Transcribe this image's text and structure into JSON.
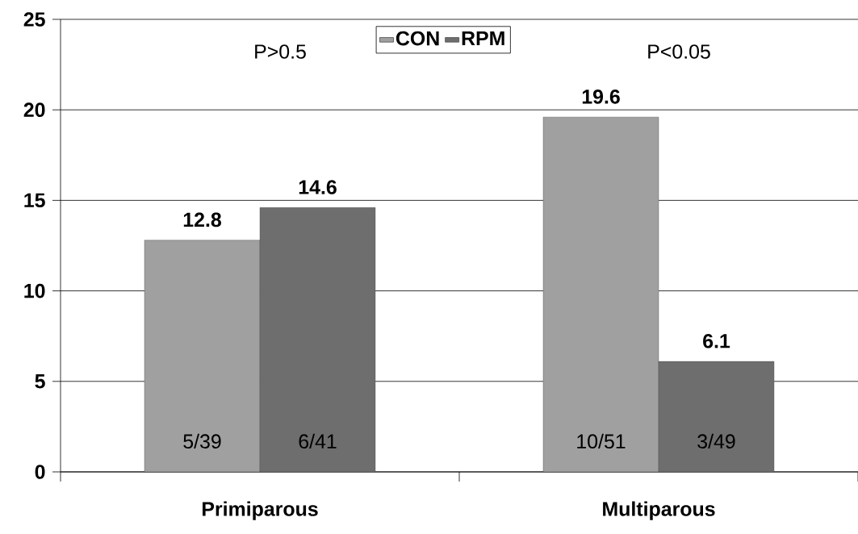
{
  "chart_data": {
    "type": "bar",
    "categories": [
      "Primiparous",
      "Multiparous"
    ],
    "series": [
      {
        "name": "CON",
        "color": "#a0a0a0",
        "values": [
          12.8,
          19.6
        ]
      },
      {
        "name": "RPM",
        "color": "#6e6e6e",
        "values": [
          14.6,
          6.1
        ]
      }
    ],
    "ylim": [
      0,
      25
    ],
    "yticks": [
      0,
      5,
      10,
      15,
      20,
      25
    ],
    "grid": "y",
    "legend": "top",
    "data_labels": true,
    "annotations": [
      "P>0.5",
      "P<0.05",
      {
        "text": "5/39",
        "x": "Primiparous",
        "y": 1.7
      },
      {
        "text": "6/41",
        "x": "Primiparous",
        "y": 1.7
      },
      {
        "text": "10/51",
        "x": "Multiparous",
        "y": 1.7
      },
      {
        "text": "3/49",
        "x": "Multiparous",
        "y": 1.7
      }
    ]
  }
}
